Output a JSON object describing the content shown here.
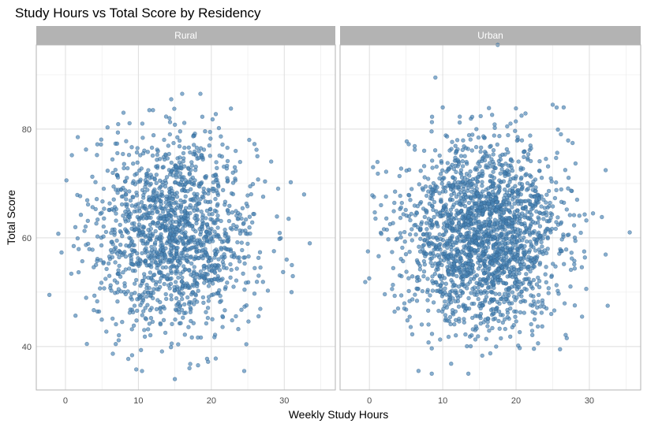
{
  "chart_data": {
    "type": "scatter",
    "title": "Study Hours vs Total Score by Residency",
    "xlabel": "Weekly Study Hours",
    "ylabel": "Total Score",
    "facets": [
      "Rural",
      "Urban"
    ],
    "xlim": [
      -4,
      37
    ],
    "ylim": [
      32,
      95.5
    ],
    "x_ticks": [
      0,
      10,
      20,
      30
    ],
    "y_ticks": [
      40,
      60,
      80
    ],
    "grid": true,
    "point_color": "#4682B4",
    "point_opacity": 0.65,
    "strip_color": "#B3B3B3",
    "series": [
      {
        "facet": "Rural",
        "distribution": {
          "x_mean": 15,
          "x_sd": 5.5,
          "y_mean": 61,
          "y_sd": 9,
          "count": 1500
        },
        "outliers": [
          [
            -2.2,
            49.5
          ],
          [
            16,
            86.5
          ],
          [
            18.5,
            86.5
          ],
          [
            11.5,
            83.5
          ],
          [
            12,
            83.5
          ],
          [
            33.5,
            59
          ],
          [
            31,
            50
          ],
          [
            15,
            34
          ],
          [
            24.5,
            35.5
          ],
          [
            10.5,
            35.5
          ],
          [
            14.5,
            85.5
          ],
          [
            17,
            36
          ]
        ]
      },
      {
        "facet": "Urban",
        "distribution": {
          "x_mean": 15.5,
          "x_sd": 5.3,
          "y_mean": 60.5,
          "y_sd": 8.5,
          "count": 2100
        },
        "outliers": [
          [
            17.5,
            95.5
          ],
          [
            9,
            89.5
          ],
          [
            35.5,
            61
          ],
          [
            10,
            84
          ],
          [
            25,
            84.5
          ],
          [
            26.5,
            84
          ],
          [
            0.5,
            73
          ],
          [
            30.5,
            64.5
          ],
          [
            32.5,
            47.5
          ],
          [
            29,
            45.5
          ],
          [
            8.5,
            35
          ],
          [
            13.5,
            35
          ],
          [
            26,
            39.5
          ],
          [
            -0.2,
            57.5
          ]
        ]
      }
    ]
  }
}
